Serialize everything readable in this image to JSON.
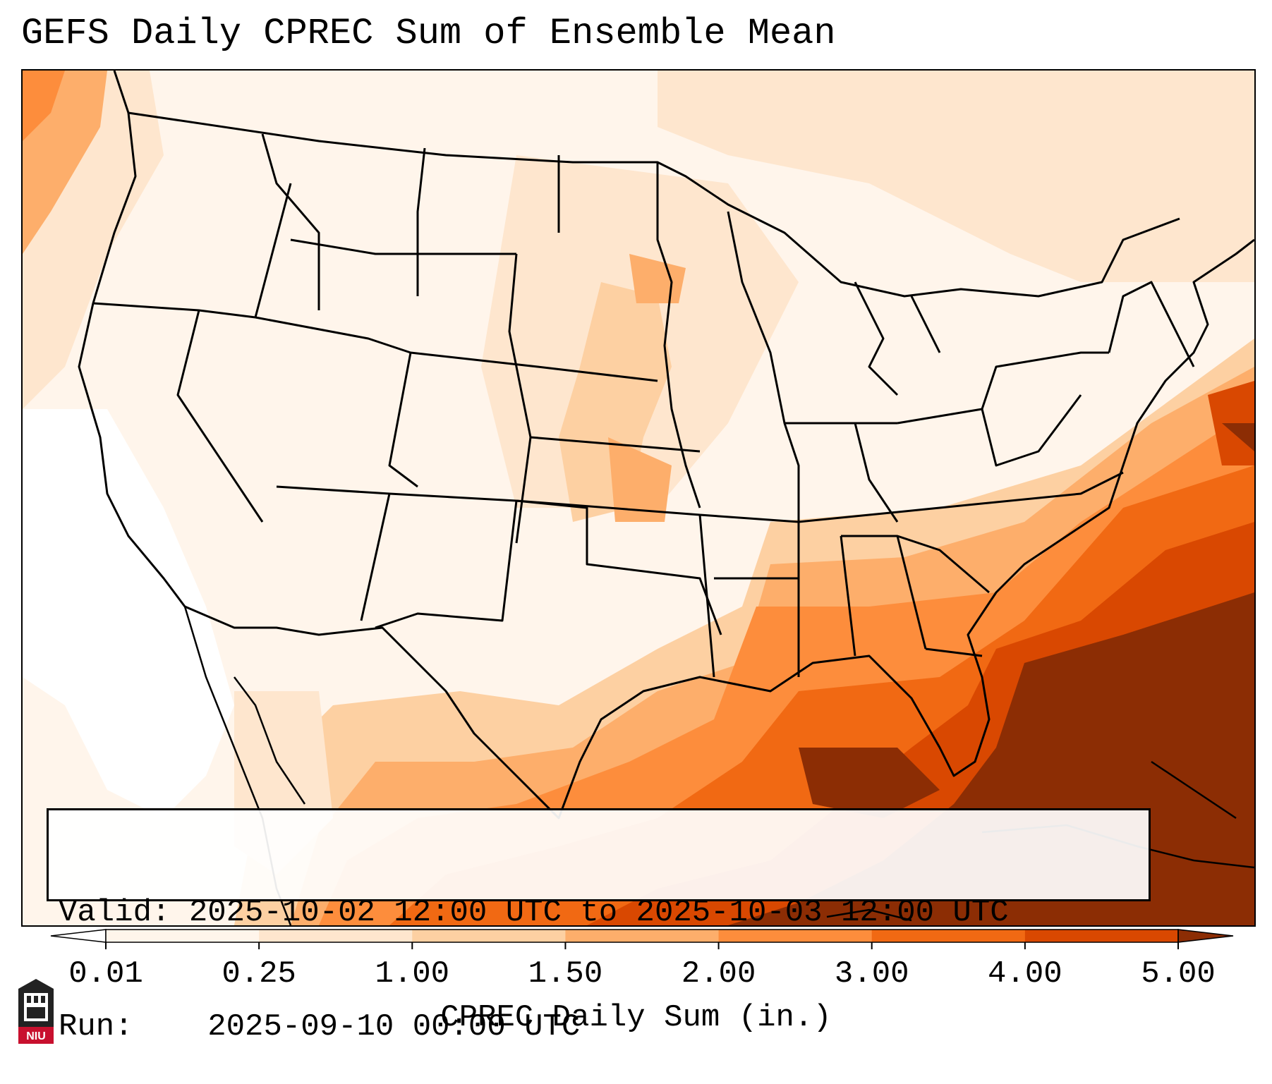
{
  "title": "GEFS Daily CPREC Sum of Ensemble Mean",
  "info": {
    "valid_label": "Valid:",
    "valid_value": "2025-10-02 12:00 UTC to 2025-10-03 12:00 UTC",
    "run_label": "Run:",
    "run_value": "2025-09-10 00:00 UTC"
  },
  "colorbar": {
    "label": "CPREC Daily Sum (in.)",
    "ticks": [
      "0.01",
      "0.25",
      "1.00",
      "1.50",
      "2.00",
      "3.00",
      "4.00",
      "5.00"
    ],
    "bins": [
      {
        "from": 0.01,
        "to": 0.25,
        "color": "#fff5eb"
      },
      {
        "from": 0.25,
        "to": 1.0,
        "color": "#fee6ce"
      },
      {
        "from": 1.0,
        "to": 1.5,
        "color": "#fdd0a2"
      },
      {
        "from": 1.5,
        "to": 2.0,
        "color": "#fdae6b"
      },
      {
        "from": 2.0,
        "to": 3.0,
        "color": "#fd8d3c"
      },
      {
        "from": 3.0,
        "to": 4.0,
        "color": "#f16913"
      },
      {
        "from": 4.0,
        "to": 5.0,
        "color": "#d94801"
      }
    ],
    "under_color": "#ffffff",
    "over_color": "#8c2d04",
    "extend": "both"
  },
  "logo": {
    "text": "NIU",
    "color": "#c8102e"
  }
}
